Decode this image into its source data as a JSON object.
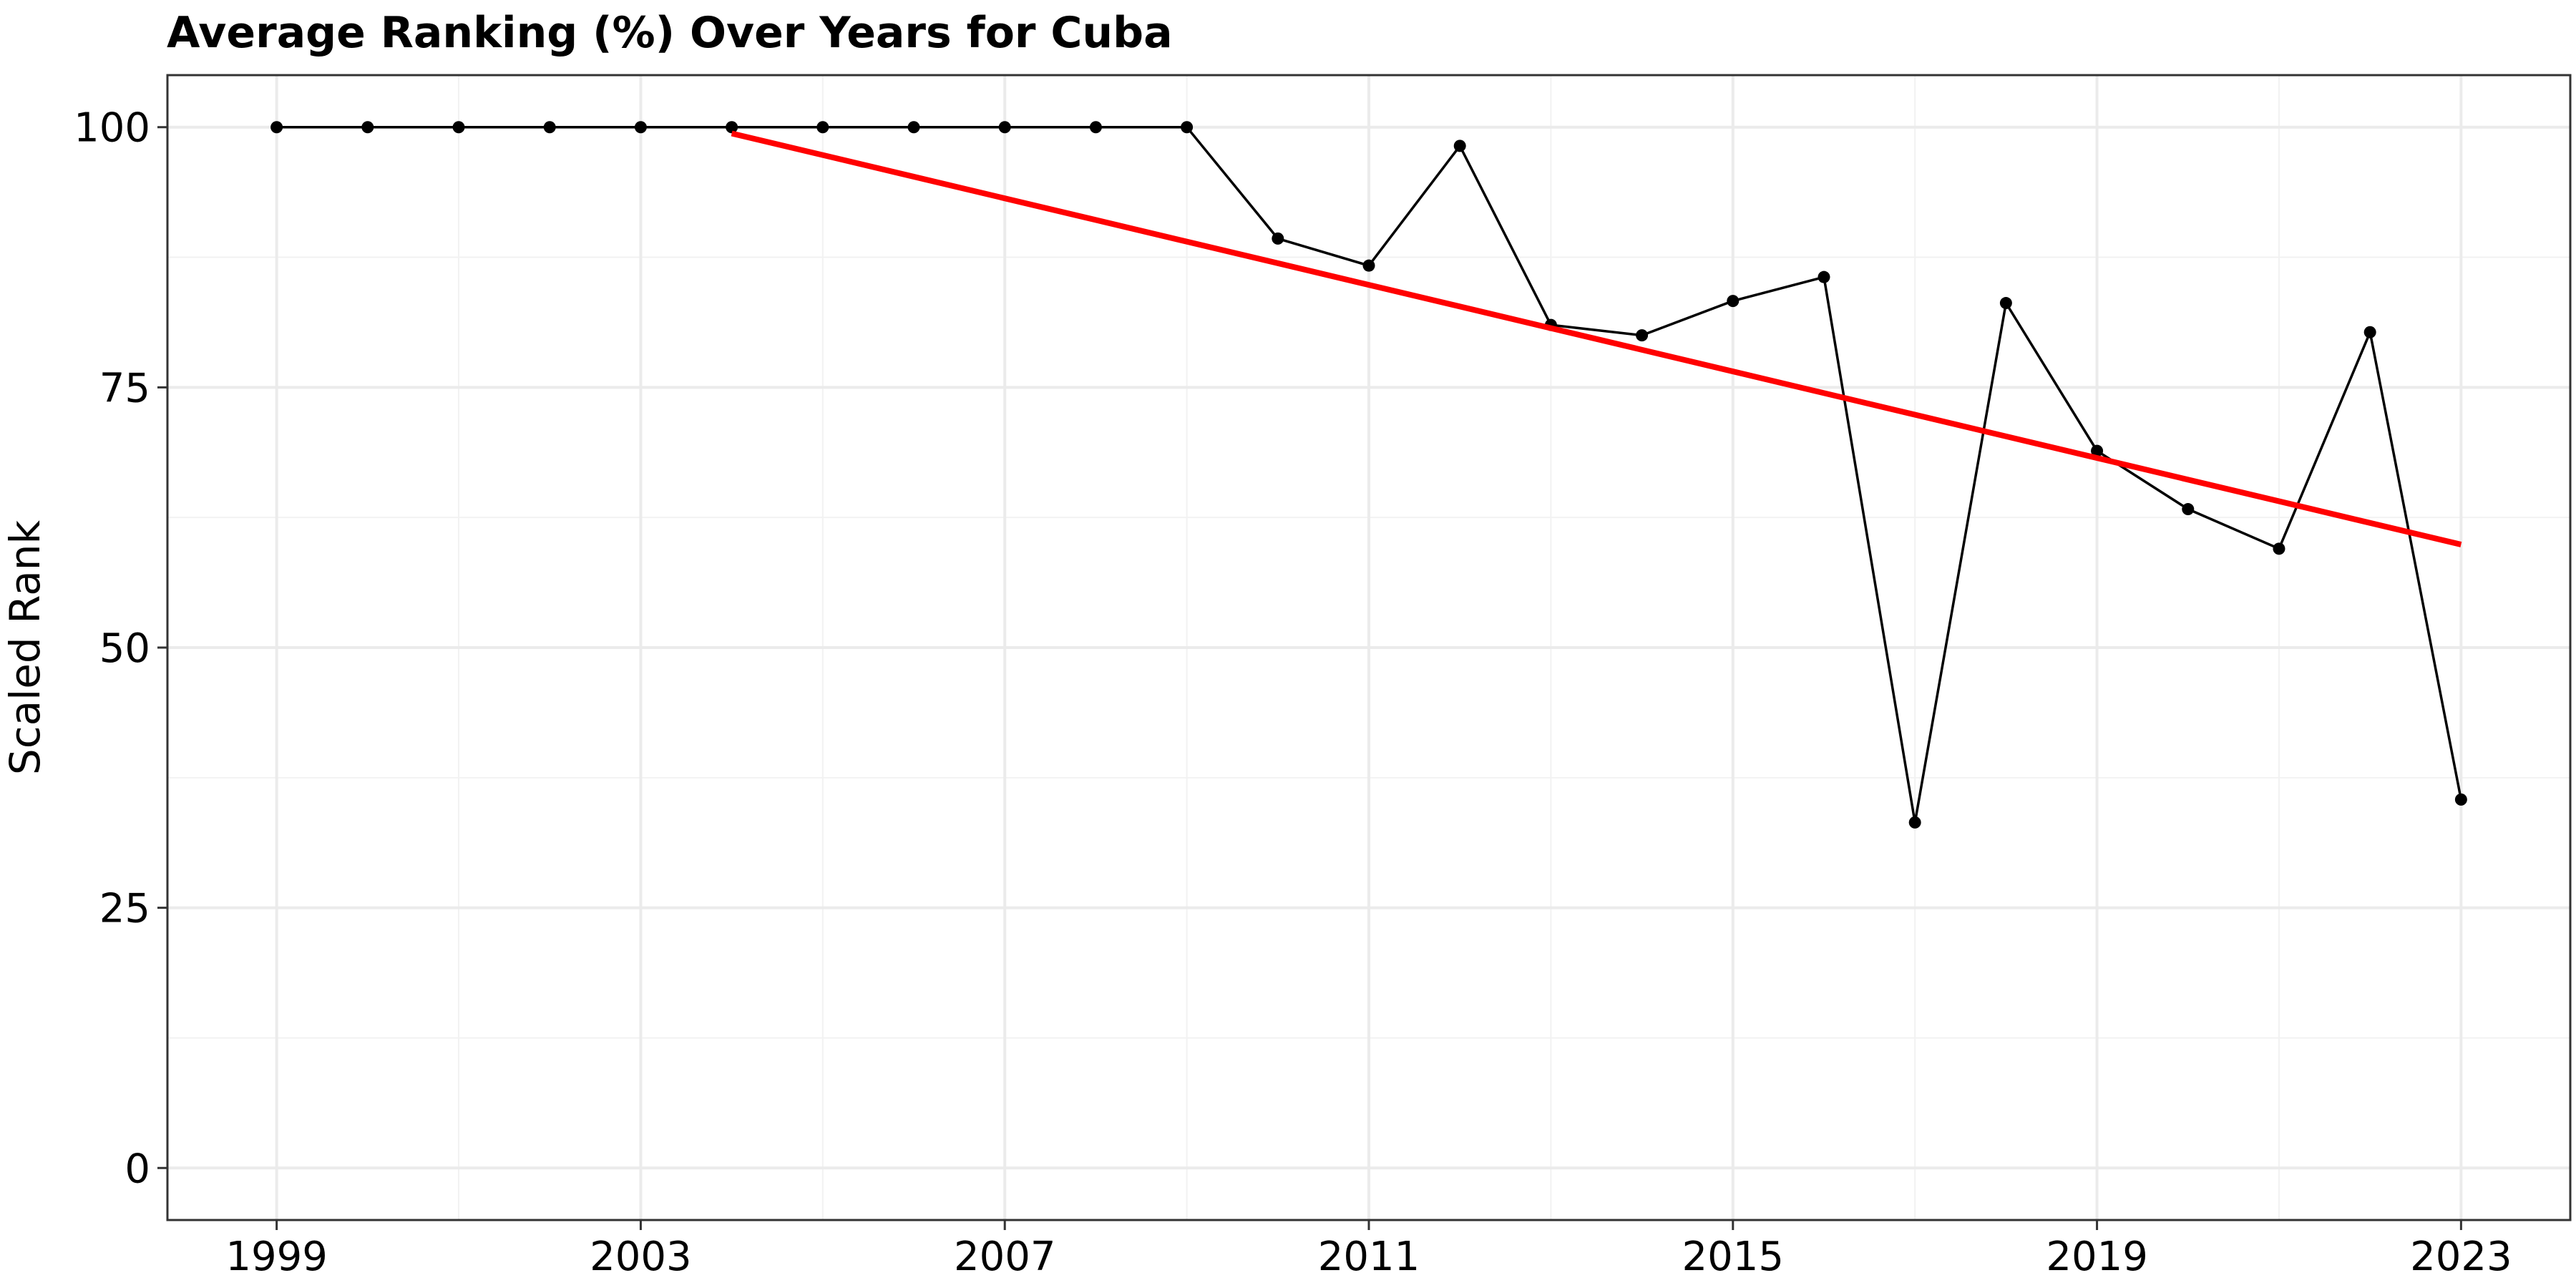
{
  "chart_data": {
    "type": "line",
    "title": "Average Ranking (%) Over Years for Cuba",
    "xlabel": "",
    "ylabel": "Scaled Rank",
    "x_ticks": [
      "1999",
      "2003",
      "2007",
      "2011",
      "2015",
      "2019",
      "2023"
    ],
    "y_ticks": [
      "0",
      "25",
      "50",
      "75",
      "100"
    ],
    "xlim": [
      1997.8,
      2024.2
    ],
    "ylim": [
      -5,
      105
    ],
    "grid": true,
    "series": [
      {
        "x": [
          1999,
          2000,
          2001,
          2002,
          2003,
          2004,
          2005,
          2006,
          2007,
          2008,
          2009,
          2010,
          2011,
          2012,
          2013,
          2014,
          2015,
          2016,
          2017,
          2018,
          2019,
          2020,
          2021,
          2022,
          2023
        ],
        "values": [
          100,
          100,
          100,
          100,
          100,
          100,
          100,
          100,
          100,
          100,
          100,
          89.3,
          86.7,
          98.2,
          81.0,
          80.0,
          83.3,
          85.6,
          33.2,
          83.1,
          68.9,
          63.3,
          59.5,
          80.3,
          35.4
        ],
        "color": "#000000"
      }
    ],
    "trend_line": {
      "x": [
        2004,
        2023
      ],
      "values": [
        99.4,
        59.9
      ],
      "color": "#ff0000"
    }
  }
}
